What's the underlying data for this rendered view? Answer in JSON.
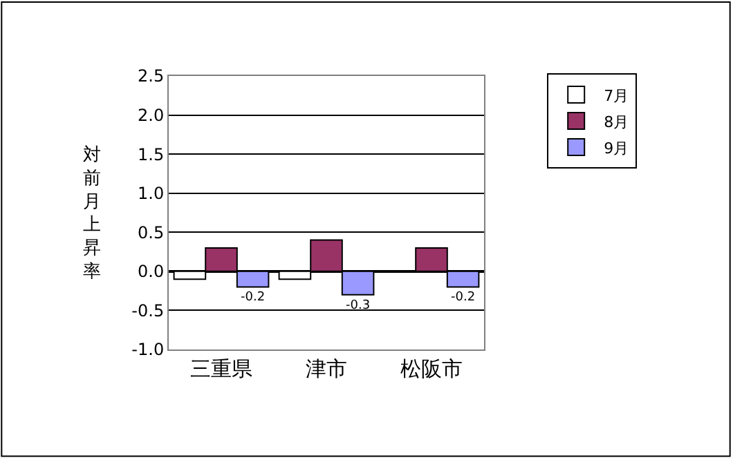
{
  "chart_data": {
    "type": "bar",
    "ylabel": "対前月上昇率",
    "categories": [
      "三重県",
      "津市",
      "松阪市"
    ],
    "series": [
      {
        "name": "7月",
        "color": "#ffffff",
        "values": [
          -0.1,
          -0.1,
          null
        ]
      },
      {
        "name": "8月",
        "color": "#993366",
        "values": [
          0.3,
          0.4,
          0.3
        ]
      },
      {
        "name": "9月",
        "color": "#9999ff",
        "values": [
          -0.2,
          -0.3,
          -0.2
        ],
        "value_labels": [
          "-0.2",
          "-0.3",
          "-0.2"
        ]
      }
    ],
    "ylim": [
      -1.0,
      2.5
    ],
    "yticks": [
      {
        "value": -1.0,
        "label": "-1.0"
      },
      {
        "value": -0.5,
        "label": "-0.5"
      },
      {
        "value": 0,
        "label": "0.0"
      },
      {
        "value": 0.5,
        "label": "0.5"
      },
      {
        "value": 1.0,
        "label": "1.0"
      },
      {
        "value": 1.5,
        "label": "1.5"
      },
      {
        "value": 2.0,
        "label": "2.0"
      },
      {
        "value": 2.5,
        "label": "2.5"
      }
    ],
    "grid": "y",
    "legend": "top right"
  }
}
